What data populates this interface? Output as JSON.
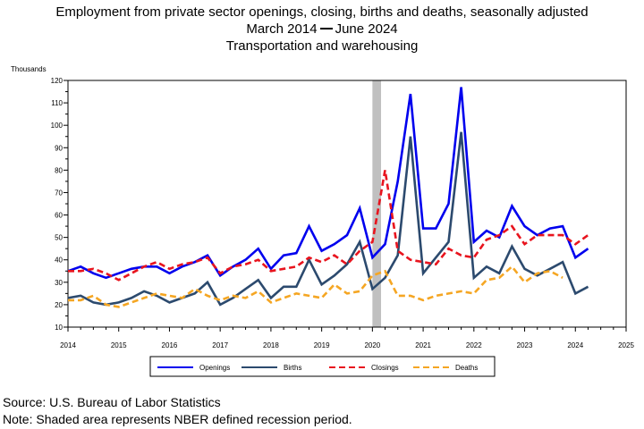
{
  "titles": {
    "line1": "Employment from private sector openings, closing, births and deaths, seasonally adjusted",
    "line2_start": "March 2014",
    "line2_end": "June 2024",
    "line3": "Transportation and warehousing"
  },
  "footer": {
    "source": "Source: U.S. Bureau of Labor Statistics",
    "note": "Note: Shaded area represents NBER defined recession period."
  },
  "chart_data": {
    "type": "line",
    "title": "Employment from private sector openings, closing, births and deaths, seasonally adjusted",
    "subtitle": "March 2014 — June 2024",
    "ylabel": "Thousands",
    "xlabel": "",
    "ylim": [
      10,
      120
    ],
    "xlim": [
      2014,
      2025
    ],
    "yticks": [
      10,
      20,
      30,
      40,
      50,
      60,
      70,
      80,
      90,
      100,
      110,
      120
    ],
    "xticks": [
      2014,
      2015,
      2016,
      2017,
      2018,
      2019,
      2020,
      2021,
      2022,
      2023,
      2024,
      2025
    ],
    "grid": false,
    "legend_position": "bottom",
    "recession": {
      "start": 2020.0,
      "end": 2020.17,
      "color": "#c0c0c0"
    },
    "x": [
      2014.0,
      2014.25,
      2014.5,
      2014.75,
      2015.0,
      2015.25,
      2015.5,
      2015.75,
      2016.0,
      2016.25,
      2016.5,
      2016.75,
      2017.0,
      2017.25,
      2017.5,
      2017.75,
      2018.0,
      2018.25,
      2018.5,
      2018.75,
      2019.0,
      2019.25,
      2019.5,
      2019.75,
      2020.0,
      2020.25,
      2020.5,
      2020.75,
      2021.0,
      2021.25,
      2021.5,
      2021.75,
      2022.0,
      2022.25,
      2022.5,
      2022.75,
      2023.0,
      2023.25,
      2023.5,
      2023.75,
      2024.0,
      2024.25
    ],
    "series": [
      {
        "name": "Openings",
        "color": "#0000ee",
        "dash": "solid",
        "width": 2.6,
        "values": [
          35,
          37,
          34,
          32,
          34,
          36,
          37,
          37,
          34,
          37,
          39,
          42,
          33,
          37,
          40,
          45,
          36,
          42,
          43,
          55,
          44,
          47,
          51,
          63,
          41,
          47,
          75,
          114,
          54,
          54,
          65,
          117,
          48,
          53,
          50,
          64,
          55,
          51,
          54,
          55,
          41,
          45
        ]
      },
      {
        "name": "Births",
        "color": "#2c4a6e",
        "dash": "solid",
        "width": 2.6,
        "values": [
          23,
          24,
          21,
          20,
          21,
          23,
          26,
          24,
          21,
          23,
          25,
          30,
          20,
          23,
          27,
          31,
          23,
          28,
          28,
          40,
          29,
          33,
          38,
          48,
          27,
          32,
          42,
          95,
          34,
          41,
          48,
          97,
          32,
          37,
          34,
          46,
          36,
          33,
          36,
          39,
          25,
          28
        ]
      },
      {
        "name": "Closings",
        "color": "#e8141e",
        "dash": "dash",
        "width": 2.6,
        "values": [
          35,
          35,
          36,
          34,
          31,
          34,
          37,
          39,
          36,
          38,
          39,
          41,
          34,
          37,
          38,
          40,
          35,
          36,
          37,
          41,
          39,
          42,
          38,
          44,
          48,
          80,
          44,
          40,
          39,
          38,
          45,
          42,
          41,
          49,
          51,
          55,
          47,
          51,
          51,
          51,
          47,
          51
        ]
      },
      {
        "name": "Deaths",
        "color": "#f5a623",
        "dash": "dash",
        "width": 2.6,
        "values": [
          22,
          22,
          24,
          20,
          19,
          21,
          23,
          25,
          24,
          23,
          27,
          24,
          22,
          24,
          23,
          26,
          21,
          23,
          25,
          24,
          23,
          29,
          25,
          26,
          33,
          35,
          24,
          24,
          22,
          24,
          25,
          26,
          25,
          31,
          32,
          37,
          30,
          34,
          35,
          32,
          null,
          null
        ]
      }
    ]
  }
}
